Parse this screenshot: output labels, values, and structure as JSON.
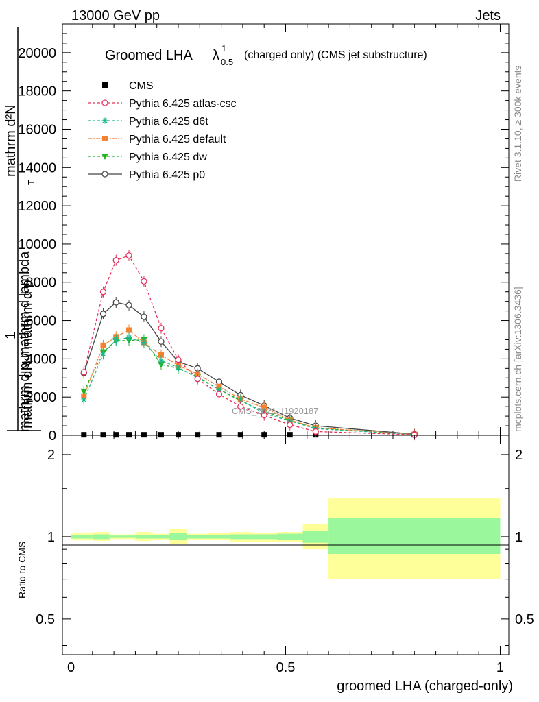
{
  "header": {
    "left": "13000 GeV pp",
    "right": "Jets"
  },
  "side": {
    "rivet": "Rivet 3.1.10, ≥ 300k events",
    "mcplots": "mcplots.cern.ch [arXiv:1306.3436]"
  },
  "watermark": "CMS_2021_I1920187",
  "chart_data": [
    {
      "type": "line",
      "title_main": "Groomed LHA",
      "title_lambda": "λ",
      "title_sup": "1",
      "title_sub": "0.5",
      "title_rest": "(charged only) (CMS jet substructure)",
      "ylabel_top": "mathrm d²N",
      "ylabel_bottom": "mathrm d pₓmathrm d lambda",
      "ylabel_lead": "1",
      "ylabel_frac": "mathrm dN / mathrm d p",
      "ylabel_frac_sub": "T",
      "xlim": [
        -0.02,
        1.02
      ],
      "ylim": [
        0,
        21500
      ],
      "yticks": [
        0,
        2000,
        4000,
        6000,
        8000,
        10000,
        12000,
        14000,
        16000,
        18000,
        20000
      ],
      "ytick_labels": [
        "0",
        "2000",
        "4000",
        "6000",
        "8000",
        "10000",
        "12000",
        "14000",
        "16000",
        "18000",
        "20000"
      ],
      "x": [
        0.03,
        0.075,
        0.105,
        0.135,
        0.17,
        0.21,
        0.25,
        0.295,
        0.345,
        0.395,
        0.45,
        0.51,
        0.57,
        0.8
      ],
      "legend": {
        "cms": "CMS",
        "atlas": "Pythia 6.425 atlas-csc",
        "d6t": "Pythia 6.425 d6t",
        "default": "Pythia 6.425 default",
        "dw": "Pythia 6.425 dw",
        "p0": "Pythia 6.425 p0"
      },
      "series": [
        {
          "key": "cms",
          "color": "#000000",
          "marker": "square",
          "dash": "none",
          "values": [
            30,
            30,
            30,
            30,
            30,
            30,
            30,
            30,
            30,
            30,
            30,
            30,
            30,
            30
          ]
        },
        {
          "key": "atlas",
          "color": "#e5305a",
          "marker": "circle-open",
          "dash": "4,3",
          "values": [
            3300,
            7500,
            9150,
            9400,
            8050,
            5600,
            3950,
            2950,
            2150,
            1500,
            1050,
            550,
            200,
            30
          ]
        },
        {
          "key": "d6t",
          "color": "#1ab88b",
          "marker": "star",
          "dash": "4,3",
          "values": [
            1850,
            4250,
            5000,
            5100,
            4850,
            3900,
            3550,
            3000,
            2400,
            1850,
            1150,
            750,
            350,
            40
          ]
        },
        {
          "key": "default",
          "color": "#f58231",
          "marker": "square",
          "dash": "6,2,2,2",
          "values": [
            2050,
            4700,
            5150,
            5500,
            4850,
            4200,
            3650,
            3200,
            2550,
            1900,
            1450,
            800,
            400,
            50
          ]
        },
        {
          "key": "dw",
          "color": "#22b222",
          "marker": "triangle-down",
          "dash": "4,3",
          "values": [
            2300,
            4350,
            4950,
            4950,
            5000,
            3700,
            3500,
            3050,
            2400,
            1800,
            1250,
            780,
            380,
            40
          ]
        },
        {
          "key": "p0",
          "color": "#444444",
          "marker": "circle-open",
          "dash": "none",
          "values": [
            3250,
            6350,
            6950,
            6800,
            6200,
            4900,
            3850,
            3500,
            2800,
            2100,
            1550,
            900,
            500,
            60
          ]
        }
      ]
    },
    {
      "type": "area",
      "ylabel": "Ratio to CMS",
      "xlabel": "groomed LHA (charged-only)",
      "xlim": [
        -0.02,
        1.02
      ],
      "ylim": [
        0.37,
        2.35
      ],
      "log_scale": true,
      "yticks": [
        0.5,
        1,
        2
      ],
      "ytick_labels": [
        "0.5",
        "1",
        "2"
      ],
      "xticks": [
        0,
        0.5,
        1
      ],
      "xtick_labels": [
        "0",
        "0.5",
        "1"
      ],
      "band_colors": {
        "inner": "#9bf79b",
        "outer": "#ffff99"
      },
      "bins": [
        {
          "x0": 0.0,
          "x1": 0.05,
          "inner_lo": 0.985,
          "inner_hi": 1.015,
          "outer_lo": 0.97,
          "outer_hi": 1.035
        },
        {
          "x0": 0.05,
          "x1": 0.09,
          "inner_lo": 0.98,
          "inner_hi": 1.02,
          "outer_lo": 0.965,
          "outer_hi": 1.04
        },
        {
          "x0": 0.09,
          "x1": 0.12,
          "inner_lo": 0.99,
          "inner_hi": 1.01,
          "outer_lo": 0.98,
          "outer_hi": 1.02
        },
        {
          "x0": 0.12,
          "x1": 0.15,
          "inner_lo": 0.99,
          "inner_hi": 1.01,
          "outer_lo": 0.98,
          "outer_hi": 1.02
        },
        {
          "x0": 0.15,
          "x1": 0.19,
          "inner_lo": 0.985,
          "inner_hi": 1.015,
          "outer_lo": 0.965,
          "outer_hi": 1.04
        },
        {
          "x0": 0.19,
          "x1": 0.23,
          "inner_lo": 0.985,
          "inner_hi": 1.015,
          "outer_lo": 0.975,
          "outer_hi": 1.025
        },
        {
          "x0": 0.23,
          "x1": 0.27,
          "inner_lo": 0.975,
          "inner_hi": 1.03,
          "outer_lo": 0.94,
          "outer_hi": 1.07
        },
        {
          "x0": 0.27,
          "x1": 0.32,
          "inner_lo": 0.985,
          "inner_hi": 1.015,
          "outer_lo": 0.975,
          "outer_hi": 1.025
        },
        {
          "x0": 0.32,
          "x1": 0.37,
          "inner_lo": 0.985,
          "inner_hi": 1.015,
          "outer_lo": 0.97,
          "outer_hi": 1.03
        },
        {
          "x0": 0.37,
          "x1": 0.42,
          "inner_lo": 0.98,
          "inner_hi": 1.02,
          "outer_lo": 0.96,
          "outer_hi": 1.04
        },
        {
          "x0": 0.42,
          "x1": 0.48,
          "inner_lo": 0.98,
          "inner_hi": 1.02,
          "outer_lo": 0.96,
          "outer_hi": 1.035
        },
        {
          "x0": 0.48,
          "x1": 0.54,
          "inner_lo": 0.975,
          "inner_hi": 1.025,
          "outer_lo": 0.955,
          "outer_hi": 1.04
        },
        {
          "x0": 0.54,
          "x1": 0.6,
          "inner_lo": 0.95,
          "inner_hi": 1.05,
          "outer_lo": 0.9,
          "outer_hi": 1.11
        },
        {
          "x0": 0.6,
          "x1": 1.0,
          "inner_lo": 0.865,
          "inner_hi": 1.17,
          "outer_lo": 0.7,
          "outer_hi": 1.38
        }
      ]
    }
  ]
}
